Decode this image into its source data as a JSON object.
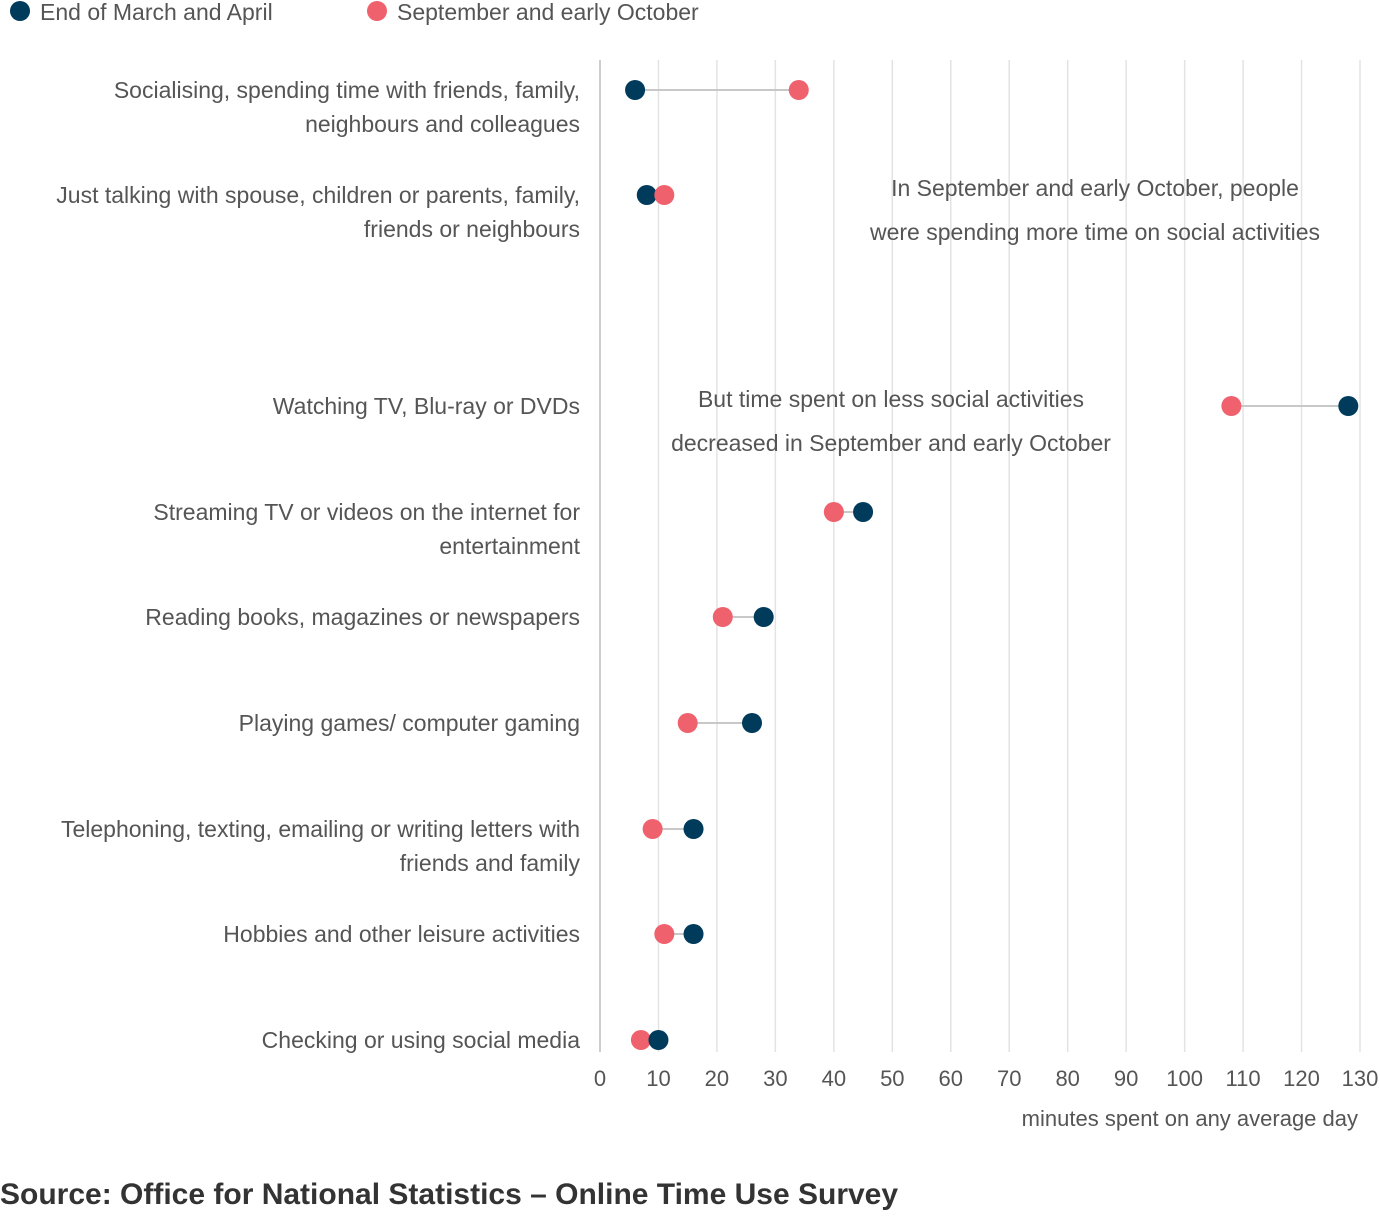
{
  "chart_data": {
    "type": "dumbbell",
    "series": [
      {
        "name": "End of March and April",
        "color": "#003B5C",
        "values": [
          6,
          8,
          128,
          45,
          28,
          26,
          16,
          16,
          10
        ]
      },
      {
        "name": "September and early October",
        "color": "#F0616E",
        "values": [
          34,
          11,
          108,
          40,
          21,
          15,
          9,
          11,
          7
        ]
      }
    ],
    "categories": [
      [
        "Socialising, spending time with friends, family,",
        "neighbours and colleagues"
      ],
      [
        "Just talking with spouse, children or parents, family,",
        "friends or neighbours"
      ],
      [
        "Watching TV, Blu-ray or DVDs"
      ],
      [
        "Streaming TV or videos on the internet for",
        "entertainment"
      ],
      [
        "Reading books, magazines or newspapers"
      ],
      [
        "Playing games/ computer gaming"
      ],
      [
        "Telephoning, texting, emailing or writing letters with",
        "friends and family"
      ],
      [
        "Hobbies and other leisure activities"
      ],
      [
        "Checking or using social media"
      ]
    ],
    "xlim": [
      0,
      130
    ],
    "xticks": [
      0,
      10,
      20,
      30,
      40,
      50,
      60,
      70,
      80,
      90,
      100,
      110,
      120,
      130
    ],
    "xlabel": "minutes spent on any average day",
    "grid": true,
    "legend_position": "top-left",
    "annotations": [
      [
        "In September and early October, people",
        "were spending more time on social activities"
      ],
      [
        "But time spent on less social activities",
        "decreased in September and early October"
      ]
    ]
  },
  "source": "Source: Office for National Statistics – Online Time Use Survey"
}
